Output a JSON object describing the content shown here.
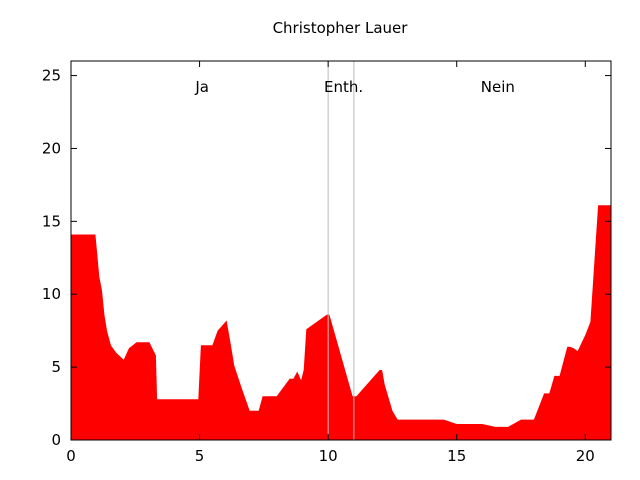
{
  "chart_data": {
    "type": "area",
    "title": "Christopher Lauer",
    "xlabel": "",
    "ylabel": "",
    "xlim": [
      0,
      21
    ],
    "ylim": [
      0,
      26
    ],
    "xticks": [
      0,
      5,
      10,
      15,
      20
    ],
    "yticks": [
      0,
      5,
      10,
      15,
      20,
      25
    ],
    "grid": false,
    "fill_color": "#ff0000",
    "divider_color": "#bbbbbb",
    "dividers": [
      10,
      11
    ],
    "regions": [
      {
        "label": "Ja",
        "x": 5.1
      },
      {
        "label": "Enth.",
        "x": 10.6
      },
      {
        "label": "Nein",
        "x": 16.6
      }
    ],
    "x": [
      0,
      0.5,
      0.95,
      1.05,
      1.1,
      1.2,
      1.3,
      1.4,
      1.55,
      1.75,
      2.05,
      2.25,
      2.55,
      3.05,
      3.3,
      3.35,
      4.95,
      5.05,
      5.5,
      5.7,
      6.05,
      6.2,
      6.35,
      6.65,
      6.95,
      7.3,
      7.45,
      8.0,
      8.5,
      8.65,
      8.8,
      8.95,
      9.05,
      9.15,
      9.95,
      10.05,
      10.95,
      11.1,
      12.0,
      12.1,
      12.2,
      12.35,
      12.5,
      12.7,
      14.5,
      15.0,
      16.0,
      16.5,
      17.0,
      17.5,
      18.0,
      18.4,
      18.6,
      18.8,
      19.0,
      19.3,
      19.4,
      19.55,
      19.7,
      20.0,
      20.2,
      20.5,
      21.0
    ],
    "values": [
      14.1,
      14.1,
      14.1,
      12.2,
      11.2,
      10.3,
      8.6,
      7.5,
      6.5,
      6.0,
      5.5,
      6.3,
      6.7,
      6.7,
      5.8,
      2.8,
      2.8,
      6.5,
      6.5,
      7.5,
      8.2,
      6.7,
      5.1,
      3.5,
      2.0,
      2.0,
      3.0,
      3.0,
      4.2,
      4.2,
      4.7,
      4.1,
      4.8,
      7.6,
      8.6,
      8.6,
      3.0,
      3.0,
      4.8,
      4.8,
      3.8,
      2.9,
      2.0,
      1.4,
      1.4,
      1.1,
      1.1,
      0.9,
      0.9,
      1.4,
      1.4,
      3.2,
      3.2,
      4.4,
      4.4,
      6.4,
      6.4,
      6.3,
      6.1,
      7.2,
      8.1,
      16.1,
      16.1
    ]
  }
}
